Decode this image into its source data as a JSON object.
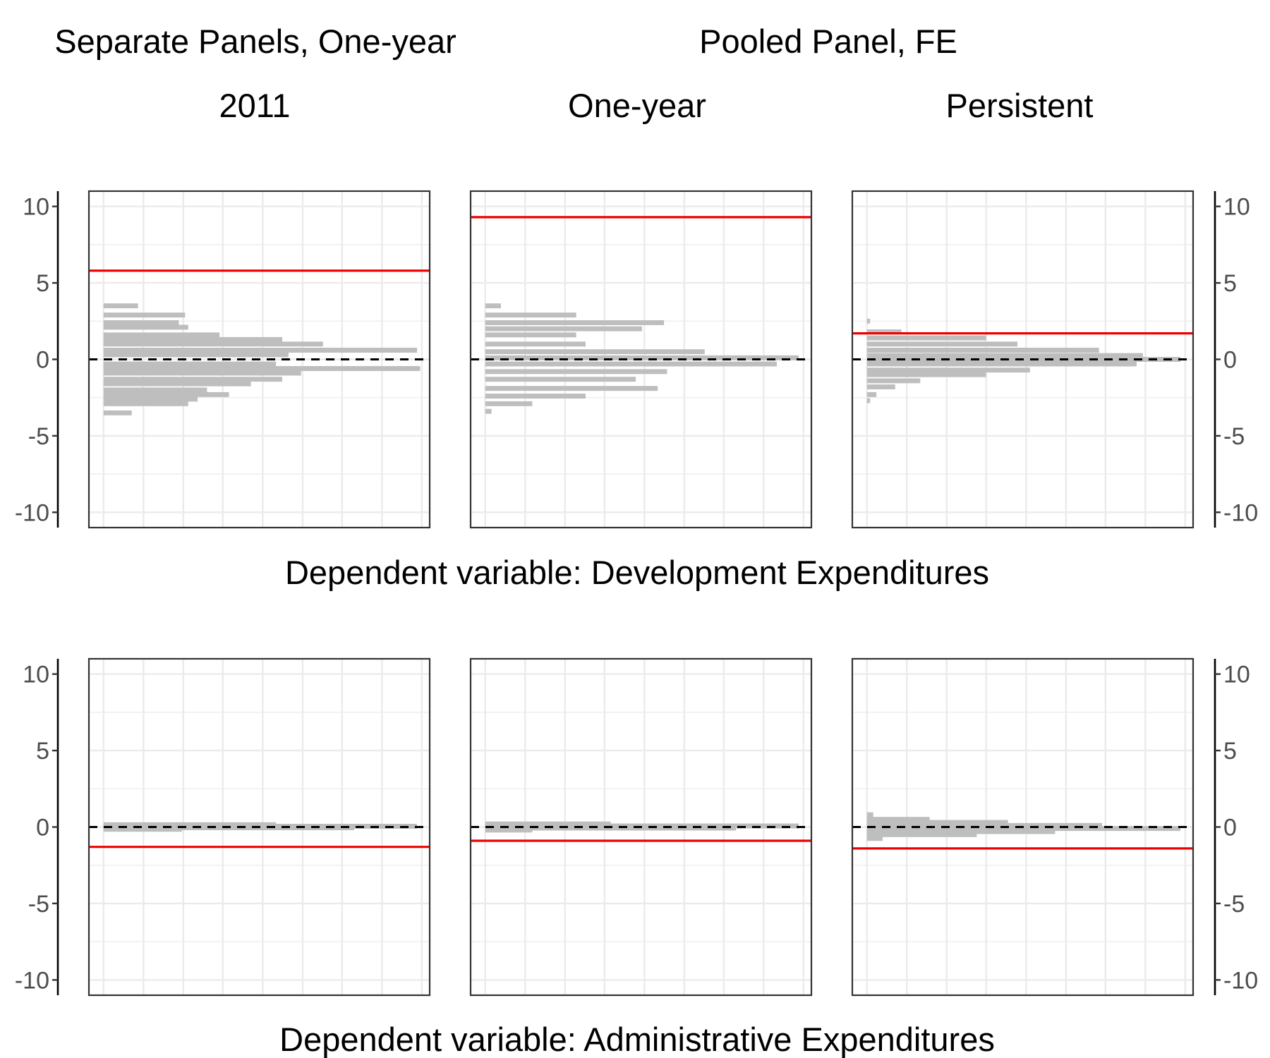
{
  "headers": {
    "top_left": "Separate Panels, One-year",
    "top_right": "Pooled Panel, FE",
    "col1": "2011",
    "col2": "One-year",
    "col3": "Persistent"
  },
  "captions": {
    "row1": "Dependent variable: Development Expenditures",
    "row2": "Dependent variable: Administrative Expenditures"
  },
  "colors": {
    "bar": "#bebebe",
    "estimate": "#ee0000",
    "zero": "#000000",
    "grid": "#ebebeb",
    "frame": "#333333"
  },
  "chart_data": [
    {
      "type": "bar",
      "orientation": "horizontal",
      "row": "Development Expenditures",
      "column": "2011",
      "ylim": [
        -11,
        11
      ],
      "yticks": [
        -10,
        -5,
        0,
        5,
        10
      ],
      "tick_labels": [
        "-10",
        "-5",
        "0",
        "5",
        "10"
      ],
      "grid": true,
      "estimate": 5.8,
      "reference": 0,
      "bins": [
        {
          "y": 3.5,
          "len": 0.11
        },
        {
          "y": 2.9,
          "len": 0.26
        },
        {
          "y": 2.4,
          "len": 0.24
        },
        {
          "y": 2.1,
          "len": 0.27
        },
        {
          "y": 1.6,
          "len": 0.37
        },
        {
          "y": 1.3,
          "len": 0.57
        },
        {
          "y": 1.0,
          "len": 0.7
        },
        {
          "y": 0.6,
          "len": 1.0
        },
        {
          "y": 0.3,
          "len": 0.59
        },
        {
          "y": -0.3,
          "len": 0.55
        },
        {
          "y": -0.6,
          "len": 1.01
        },
        {
          "y": -0.9,
          "len": 0.63
        },
        {
          "y": -1.3,
          "len": 0.57
        },
        {
          "y": -1.6,
          "len": 0.47
        },
        {
          "y": -2.0,
          "len": 0.33
        },
        {
          "y": -2.3,
          "len": 0.4
        },
        {
          "y": -2.6,
          "len": 0.3
        },
        {
          "y": -2.9,
          "len": 0.27
        },
        {
          "y": -3.5,
          "len": 0.09
        }
      ]
    },
    {
      "type": "bar",
      "orientation": "horizontal",
      "row": "Development Expenditures",
      "column": "One-year",
      "ylim": [
        -11,
        11
      ],
      "yticks": [
        -10,
        -5,
        0,
        5,
        10
      ],
      "tick_labels": [
        "-10",
        "-5",
        "0",
        "5",
        "10"
      ],
      "grid": true,
      "estimate": 9.3,
      "reference": 0,
      "bins": [
        {
          "y": 3.5,
          "len": 0.05
        },
        {
          "y": 2.9,
          "len": 0.29
        },
        {
          "y": 2.4,
          "len": 0.57
        },
        {
          "y": 2.0,
          "len": 0.5
        },
        {
          "y": 1.6,
          "len": 0.29
        },
        {
          "y": 1.0,
          "len": 0.32
        },
        {
          "y": 0.5,
          "len": 0.7
        },
        {
          "y": 0.1,
          "len": 1.0
        },
        {
          "y": -0.3,
          "len": 0.93
        },
        {
          "y": -0.8,
          "len": 0.58
        },
        {
          "y": -1.3,
          "len": 0.48
        },
        {
          "y": -1.9,
          "len": 0.55
        },
        {
          "y": -2.4,
          "len": 0.32
        },
        {
          "y": -2.9,
          "len": 0.15
        },
        {
          "y": -3.4,
          "len": 0.02
        }
      ]
    },
    {
      "type": "bar",
      "orientation": "horizontal",
      "row": "Development Expenditures",
      "column": "Persistent",
      "ylim": [
        -11,
        11
      ],
      "yticks": [
        -10,
        -5,
        0,
        5,
        10
      ],
      "tick_labels": [
        "-10",
        "-5",
        "0",
        "5",
        "10"
      ],
      "grid": true,
      "estimate": 1.7,
      "reference": 0,
      "bins": [
        {
          "y": 2.5,
          "len": 0.01
        },
        {
          "y": 1.8,
          "len": 0.11
        },
        {
          "y": 1.4,
          "len": 0.38
        },
        {
          "y": 1.0,
          "len": 0.48
        },
        {
          "y": 0.6,
          "len": 0.74
        },
        {
          "y": 0.25,
          "len": 0.88
        },
        {
          "y": 0.0,
          "len": 1.0
        },
        {
          "y": -0.3,
          "len": 0.86
        },
        {
          "y": -0.7,
          "len": 0.52
        },
        {
          "y": -1.0,
          "len": 0.38
        },
        {
          "y": -1.4,
          "len": 0.17
        },
        {
          "y": -1.8,
          "len": 0.09
        },
        {
          "y": -2.3,
          "len": 0.03
        },
        {
          "y": -2.7,
          "len": 0.01
        }
      ]
    },
    {
      "type": "bar",
      "orientation": "horizontal",
      "row": "Administrative Expenditures",
      "column": "2011",
      "ylim": [
        -11,
        11
      ],
      "yticks": [
        -10,
        -5,
        0,
        5,
        10
      ],
      "tick_labels": [
        "-10",
        "-5",
        "0",
        "5",
        "10"
      ],
      "grid": true,
      "estimate": -1.3,
      "reference": 0,
      "bins": [
        {
          "y": 0.15,
          "len": 0.55
        },
        {
          "y": 0.05,
          "len": 1.0
        },
        {
          "y": -0.05,
          "len": 0.8
        },
        {
          "y": -0.15,
          "len": 0.25
        }
      ]
    },
    {
      "type": "bar",
      "orientation": "horizontal",
      "row": "Administrative Expenditures",
      "column": "One-year",
      "ylim": [
        -11,
        11
      ],
      "yticks": [
        -10,
        -5,
        0,
        5,
        10
      ],
      "tick_labels": [
        "-10",
        "-5",
        "0",
        "5",
        "10"
      ],
      "grid": true,
      "estimate": -0.9,
      "reference": 0,
      "bins": [
        {
          "y": 0.2,
          "len": 0.4
        },
        {
          "y": 0.07,
          "len": 1.0
        },
        {
          "y": -0.07,
          "len": 0.8
        },
        {
          "y": -0.2,
          "len": 0.15
        }
      ]
    },
    {
      "type": "bar",
      "orientation": "horizontal",
      "row": "Administrative Expenditures",
      "column": "Persistent",
      "ylim": [
        -11,
        11
      ],
      "yticks": [
        -10,
        -5,
        0,
        5,
        10
      ],
      "tick_labels": [
        "-10",
        "-5",
        "0",
        "5",
        "10"
      ],
      "grid": true,
      "estimate": -1.4,
      "reference": 0,
      "bins": [
        {
          "y": 0.8,
          "len": 0.02
        },
        {
          "y": 0.5,
          "len": 0.2
        },
        {
          "y": 0.3,
          "len": 0.45
        },
        {
          "y": 0.1,
          "len": 0.75
        },
        {
          "y": -0.1,
          "len": 1.0
        },
        {
          "y": -0.3,
          "len": 0.6
        },
        {
          "y": -0.5,
          "len": 0.35
        },
        {
          "y": -0.75,
          "len": 0.05
        }
      ]
    }
  ]
}
